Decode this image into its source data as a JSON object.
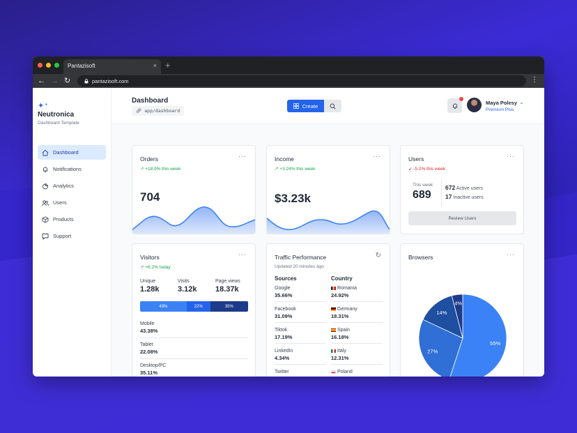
{
  "browser": {
    "tab_title": "Pantazisoft",
    "tab_close": "×",
    "new_tab": "+",
    "url": "pantazisoft.com"
  },
  "sidebar": {
    "brand_name": "Neutronica",
    "brand_sub": "Dashboard Template",
    "items": [
      {
        "label": "Dashboard",
        "icon": "home-icon",
        "active": true
      },
      {
        "label": "Notifications",
        "icon": "bell-icon"
      },
      {
        "label": "Analytics",
        "icon": "pie-chart-icon"
      },
      {
        "label": "Users",
        "icon": "users-icon"
      },
      {
        "label": "Products",
        "icon": "box-icon"
      },
      {
        "label": "Support",
        "icon": "chat-icon"
      }
    ]
  },
  "header": {
    "title": "Dashboard",
    "breadcrumb": "app/dashboard",
    "create_label": "Create",
    "user_name": "Maya Polesy",
    "user_plan": "Premium Plus"
  },
  "orders": {
    "title": "Orders",
    "trend": "+18.9% this week",
    "value": "704",
    "more": "···"
  },
  "income": {
    "title": "Income",
    "trend": "+3.24% this week",
    "value": "$3.23k",
    "more": "···"
  },
  "users_card": {
    "title": "Users",
    "trend": "-5.2% this week",
    "more": "···",
    "week_label": "This week",
    "week_value": "689",
    "active_count": "672",
    "active_label": "Active users",
    "inactive_count": "17",
    "inactive_label": "Inactive users",
    "button": "Review Users"
  },
  "visitors": {
    "title": "Visitors",
    "trend": "+6.2% today",
    "more": "···",
    "stats": [
      {
        "label": "Unique",
        "value": "1.28k"
      },
      {
        "label": "Visits",
        "value": "3.12k"
      },
      {
        "label": "Page views",
        "value": "18.37k"
      }
    ],
    "split": [
      {
        "label": "43%",
        "value": 43,
        "color": "#3b82f6"
      },
      {
        "label": "22%",
        "value": 22,
        "color": "#2563eb"
      },
      {
        "label": "35%",
        "value": 35,
        "color": "#1e3a8a"
      }
    ],
    "devices": [
      {
        "label": "Mobile",
        "value": "43.38%"
      },
      {
        "label": "Tablet",
        "value": "22.08%"
      },
      {
        "label": "Desktop/PC",
        "value": "35.11%"
      }
    ]
  },
  "traffic": {
    "title": "Traffic Performance",
    "updated": "Updated 20 minutes ago",
    "sources_head": "Sources",
    "country_head": "Country",
    "sources": [
      {
        "label": "Google",
        "value": "35.66%"
      },
      {
        "label": "Facebook",
        "value": "31.09%"
      },
      {
        "label": "Tiktok",
        "value": "17.19%"
      },
      {
        "label": "LinkedIn",
        "value": "4.34%"
      },
      {
        "label": "Twitter",
        "value": ""
      }
    ],
    "countries": [
      {
        "label": "Romania",
        "value": "24.92%"
      },
      {
        "label": "Germany",
        "value": "18.31%"
      },
      {
        "label": "Spain",
        "value": "16.18%"
      },
      {
        "label": "Italy",
        "value": "12.31%"
      },
      {
        "label": "Poland",
        "value": ""
      }
    ]
  },
  "browsers": {
    "title": "Browsers",
    "more": "···",
    "chart_data": {
      "type": "pie",
      "slices": [
        {
          "label": "55%",
          "value": 55,
          "color": "#3b82f6"
        },
        {
          "label": "27%",
          "value": 27,
          "color": "#2f6fd6"
        },
        {
          "label": "14%",
          "value": 14,
          "color": "#1e4fa0"
        },
        {
          "label": "4%",
          "value": 4,
          "color": "#1e3a8a"
        }
      ]
    }
  },
  "colors": {
    "accent": "#2563eb",
    "up": "#16a34a",
    "down": "#dc2626"
  }
}
